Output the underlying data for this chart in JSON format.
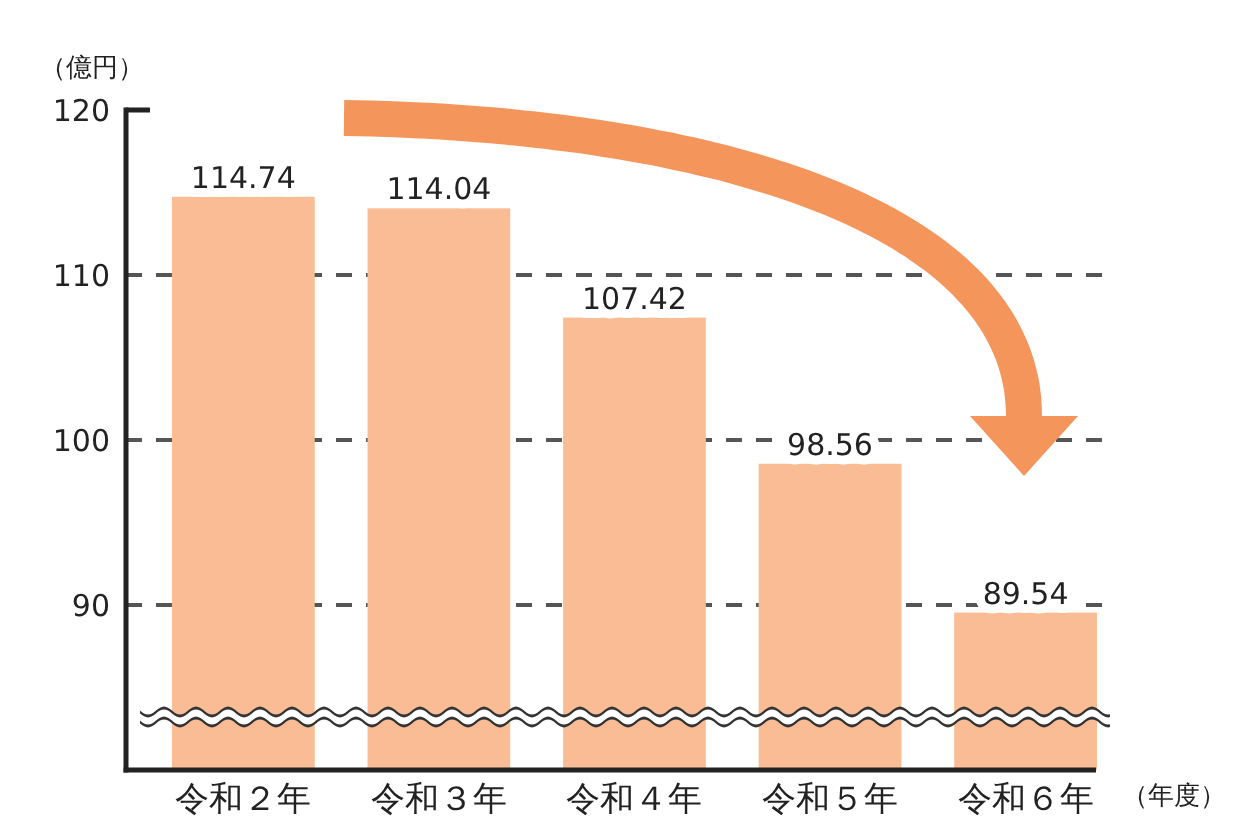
{
  "chart_data": {
    "type": "bar",
    "ylabel": "（億円）",
    "xlabel": "（年度）",
    "categories": [
      "令和２年",
      "令和３年",
      "令和４年",
      "令和５年",
      "令和６年"
    ],
    "values": [
      114.74,
      114.04,
      107.42,
      98.56,
      89.54
    ],
    "color": "#f9bc94",
    "ylim": [
      80,
      120
    ],
    "yticks": [
      90,
      100,
      110,
      120
    ],
    "grid": "y",
    "data_labels": true
  }
}
